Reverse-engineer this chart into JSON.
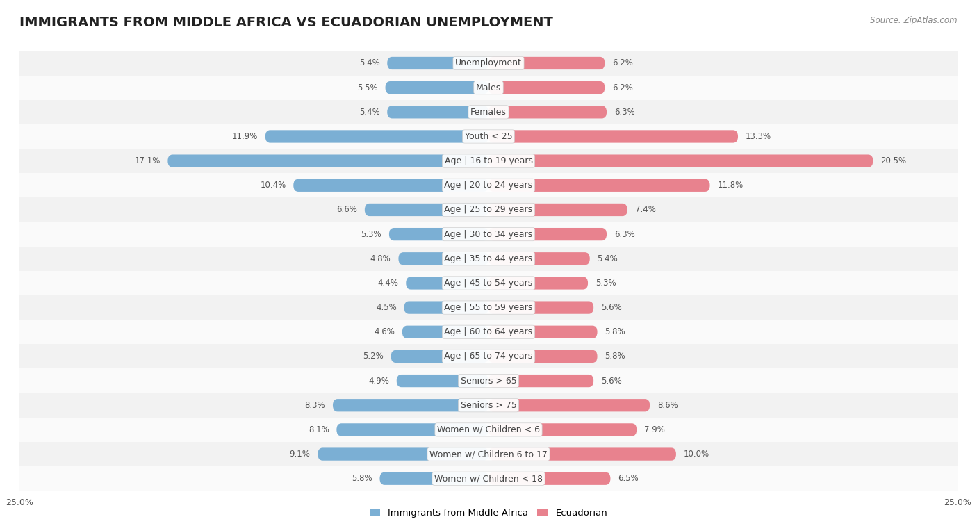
{
  "title": "IMMIGRANTS FROM MIDDLE AFRICA VS ECUADORIAN UNEMPLOYMENT",
  "source": "Source: ZipAtlas.com",
  "categories": [
    "Unemployment",
    "Males",
    "Females",
    "Youth < 25",
    "Age | 16 to 19 years",
    "Age | 20 to 24 years",
    "Age | 25 to 29 years",
    "Age | 30 to 34 years",
    "Age | 35 to 44 years",
    "Age | 45 to 54 years",
    "Age | 55 to 59 years",
    "Age | 60 to 64 years",
    "Age | 65 to 74 years",
    "Seniors > 65",
    "Seniors > 75",
    "Women w/ Children < 6",
    "Women w/ Children 6 to 17",
    "Women w/ Children < 18"
  ],
  "left_values": [
    5.4,
    5.5,
    5.4,
    11.9,
    17.1,
    10.4,
    6.6,
    5.3,
    4.8,
    4.4,
    4.5,
    4.6,
    5.2,
    4.9,
    8.3,
    8.1,
    9.1,
    5.8
  ],
  "right_values": [
    6.2,
    6.2,
    6.3,
    13.3,
    20.5,
    11.8,
    7.4,
    6.3,
    5.4,
    5.3,
    5.6,
    5.8,
    5.8,
    5.6,
    8.6,
    7.9,
    10.0,
    6.5
  ],
  "left_color": "#7BAFD4",
  "right_color": "#E8828E",
  "bar_height": 0.52,
  "xlim": 25.0,
  "row_bg_even": "#f2f2f2",
  "row_bg_odd": "#fafafa",
  "legend_left": "Immigrants from Middle Africa",
  "legend_right": "Ecuadorian",
  "title_fontsize": 14,
  "label_fontsize": 9,
  "value_fontsize": 8.5,
  "source_fontsize": 8.5,
  "axis_label_fontsize": 9
}
